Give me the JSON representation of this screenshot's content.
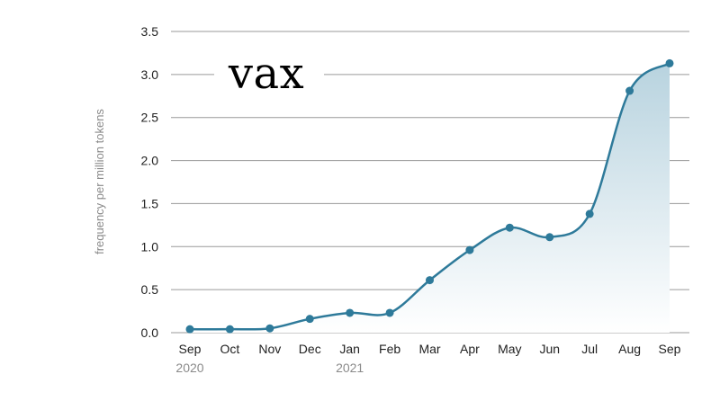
{
  "chart_data": {
    "type": "area",
    "title": "vax",
    "ylabel": "frequency per million tokens",
    "xlabel": "",
    "categories": [
      "Sep",
      "Oct",
      "Nov",
      "Dec",
      "Jan",
      "Feb",
      "Mar",
      "Apr",
      "May",
      "Jun",
      "Jul",
      "Aug",
      "Sep"
    ],
    "year_labels": [
      {
        "index": 0,
        "label": "2020"
      },
      {
        "index": 4,
        "label": "2021"
      }
    ],
    "values": [
      0.04,
      0.04,
      0.05,
      0.16,
      0.23,
      0.23,
      0.61,
      0.96,
      1.22,
      1.11,
      1.38,
      2.81,
      3.13
    ],
    "ylim": [
      0,
      3.5
    ],
    "yticks": [
      0.0,
      0.5,
      1.0,
      1.5,
      2.0,
      2.5,
      3.0,
      3.5
    ],
    "grid": true,
    "colors": {
      "line": "#2e7a9a",
      "point": "#2e7a9a",
      "fill_top": "#b8d3df",
      "fill_bottom": "#ffffff",
      "grid": "#9a9a9a"
    }
  }
}
